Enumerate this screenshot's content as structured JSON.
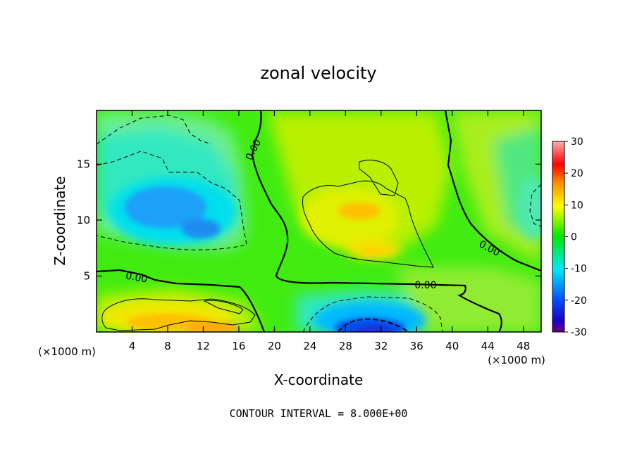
{
  "chart_data": {
    "type": "contour",
    "title": "zonal velocity",
    "xlabel": "X-coordinate",
    "ylabel": "Z-coordinate",
    "x_unit_label": "(×1000 m)",
    "z_unit_label": "(×1000 m)",
    "xlim": [
      0,
      50
    ],
    "zlim": [
      0,
      19.8
    ],
    "x_ticks": [
      4,
      8,
      12,
      16,
      20,
      24,
      28,
      32,
      36,
      40,
      44,
      48
    ],
    "z_ticks": [
      5,
      10,
      15
    ],
    "footer": "CONTOUR INTERVAL = 8.000E+00",
    "contour_interval": 8,
    "contour_labels": [
      {
        "text": "0.00",
        "x": 17.6,
        "z": 16.3,
        "angle": -62
      },
      {
        "text": "0.00",
        "x": 4.5,
        "z": 4.9,
        "angle": 10
      },
      {
        "text": "0.00",
        "x": 37.0,
        "z": 4.2,
        "angle": 0
      },
      {
        "text": "0.00",
        "x": 44.2,
        "z": 7.5,
        "angle": 28
      }
    ],
    "colorbar": {
      "min": -30,
      "max": 30,
      "ticks": [
        30,
        20,
        10,
        0,
        -10,
        -20,
        -30
      ]
    },
    "features": [
      {
        "kind": "min",
        "x": 8,
        "z": 11.3,
        "value": -13
      },
      {
        "kind": "min",
        "x": 12,
        "z": 9.5,
        "value": -12
      },
      {
        "kind": "max",
        "x": 29,
        "z": 11.0,
        "value": 11
      },
      {
        "kind": "max",
        "x": 31,
        "z": 7.3,
        "value": 9
      },
      {
        "kind": "max",
        "x": 8,
        "z": 1.2,
        "value": 11
      },
      {
        "kind": "max",
        "x": 13,
        "z": 0.6,
        "value": 12
      },
      {
        "kind": "min",
        "x": 31,
        "z": 0.5,
        "value": -22
      },
      {
        "kind": "max",
        "x": 39,
        "z": 15.0,
        "value": 4
      },
      {
        "kind": "min",
        "x": 49.5,
        "z": 11.0,
        "value": -5
      }
    ]
  }
}
